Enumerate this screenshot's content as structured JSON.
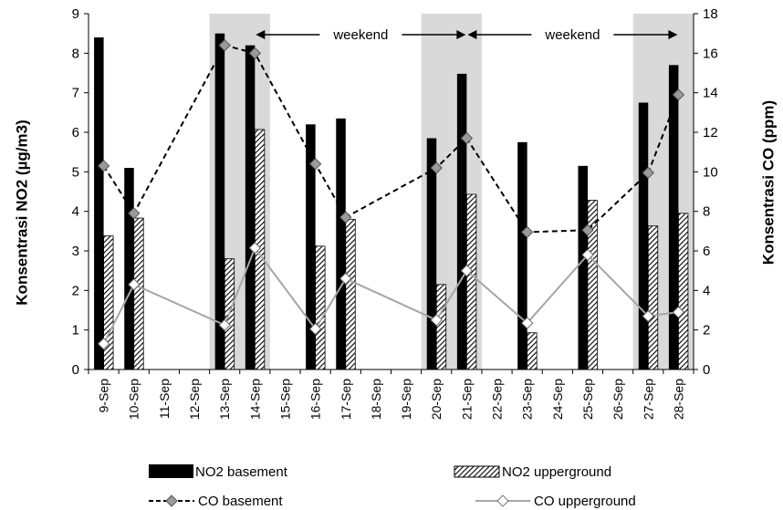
{
  "chart_data": {
    "type": "bar",
    "categories": [
      "9-Sep",
      "10-Sep",
      "11-Sep",
      "12-Sep",
      "13-Sep",
      "14-Sep",
      "15-Sep",
      "16-Sep",
      "17-Sep",
      "18-Sep",
      "19-Sep",
      "20-Sep",
      "21-Sep",
      "22-Sep",
      "23-Sep",
      "24-Sep",
      "25-Sep",
      "26-Sep",
      "27-Sep",
      "28-Sep"
    ],
    "ylabel": "Konsentrasi NO2 (µg/m3)",
    "y2label": "Konsentrasi CO (ppm)",
    "ylim": [
      0,
      9
    ],
    "y2lim": [
      0,
      18
    ],
    "yticks": [
      "0",
      "1",
      "2",
      "3",
      "4",
      "5",
      "6",
      "7",
      "8",
      "9"
    ],
    "y2ticks": [
      "0",
      "2",
      "4",
      "6",
      "8",
      "10",
      "12",
      "14",
      "16",
      "18"
    ],
    "grid": false,
    "legend_position": "bottom",
    "shaded_ranges": [
      {
        "from": "13-Sep",
        "to": "14-Sep"
      },
      {
        "from": "20-Sep",
        "to": "21-Sep"
      },
      {
        "from": "27-Sep",
        "to": "28-Sep"
      }
    ],
    "annotations": [
      {
        "text": "weekend",
        "from": "14-Sep",
        "to": "21-Sep"
      },
      {
        "text": "weekend",
        "from": "21-Sep",
        "to": "28-Sep"
      }
    ],
    "series": [
      {
        "name": "NO2 basement",
        "kind": "bar",
        "axis": "left",
        "color": "#000000",
        "values": [
          8.4,
          5.1,
          null,
          null,
          8.5,
          8.2,
          null,
          6.2,
          6.35,
          null,
          null,
          5.85,
          7.48,
          null,
          5.75,
          null,
          5.15,
          null,
          6.75,
          7.7
        ]
      },
      {
        "name": "NO2 upperground",
        "kind": "bar-hatched",
        "axis": "left",
        "color": "#000000",
        "values": [
          3.38,
          3.83,
          null,
          null,
          2.8,
          6.07,
          null,
          3.12,
          3.8,
          null,
          null,
          2.15,
          4.43,
          null,
          0.93,
          null,
          4.28,
          null,
          3.63,
          3.95
        ]
      },
      {
        "name": "CO basement",
        "kind": "line-dashed",
        "axis": "right",
        "color": "#000000",
        "marker_color": "#9a9a9a",
        "values": [
          10.3,
          7.9,
          null,
          null,
          16.4,
          16.0,
          null,
          10.4,
          7.7,
          null,
          null,
          10.2,
          11.7,
          null,
          6.95,
          null,
          7.05,
          null,
          9.95,
          13.9
        ]
      },
      {
        "name": "CO upperground",
        "kind": "line",
        "axis": "right",
        "color": "#a6a6a6",
        "marker_color": "#ffffff",
        "values": [
          1.3,
          4.3,
          null,
          null,
          2.25,
          6.15,
          null,
          2.05,
          4.6,
          null,
          null,
          2.5,
          5.0,
          null,
          2.35,
          null,
          5.8,
          null,
          2.7,
          2.9
        ]
      }
    ]
  }
}
